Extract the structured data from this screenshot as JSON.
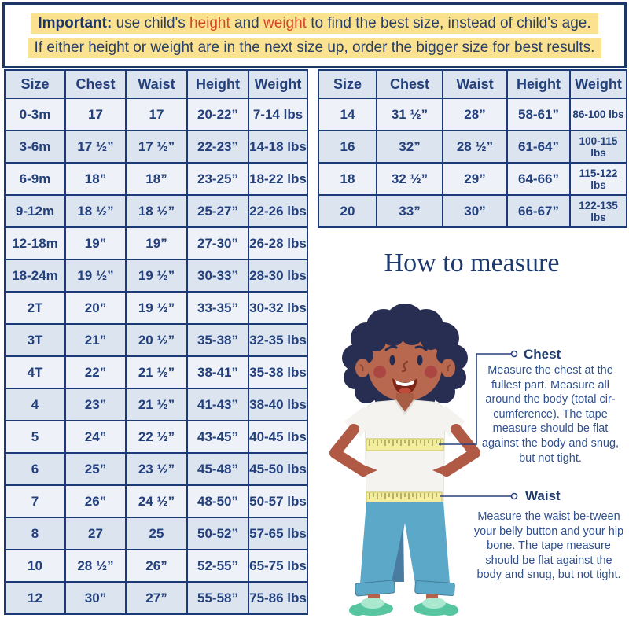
{
  "banner": {
    "important": "Important:",
    "seg_use": " use child's ",
    "height_word": "height",
    "seg_and": " and ",
    "weight_word": "weight",
    "seg_rest": " to find the best size, instead of child's age.",
    "line2": "If either height or weight are in the next size up, order the bigger size for best results."
  },
  "size_table_headers": [
    "Size",
    "Chest",
    "Waist",
    "Height",
    "Weight"
  ],
  "left_table_rows": [
    [
      "0-3m",
      "17",
      "17",
      "20-22”",
      "7-14 lbs"
    ],
    [
      "3-6m",
      "17 ½”",
      "17 ½”",
      "22-23”",
      "14-18 lbs"
    ],
    [
      "6-9m",
      "18”",
      "18”",
      "23-25”",
      "18-22 lbs"
    ],
    [
      "9-12m",
      "18 ½”",
      "18 ½”",
      "25-27”",
      "22-26 lbs"
    ],
    [
      "12-18m",
      "19”",
      "19”",
      "27-30”",
      "26-28 lbs"
    ],
    [
      "18-24m",
      "19 ½”",
      "19 ½”",
      "30-33”",
      "28-30 lbs"
    ],
    [
      "2T",
      "20”",
      "19 ½”",
      "33-35”",
      "30-32 lbs"
    ],
    [
      "3T",
      "21”",
      "20 ½”",
      "35-38”",
      "32-35 lbs"
    ],
    [
      "4T",
      "22”",
      "21 ½”",
      "38-41”",
      "35-38 lbs"
    ],
    [
      "4",
      "23”",
      "21 ½”",
      "41-43”",
      "38-40 lbs"
    ],
    [
      "5",
      "24”",
      "22 ½”",
      "43-45”",
      "40-45 lbs"
    ],
    [
      "6",
      "25”",
      "23 ½”",
      "45-48”",
      "45-50 lbs"
    ],
    [
      "7",
      "26”",
      "24 ½”",
      "48-50”",
      "50-57 lbs"
    ],
    [
      "8",
      "27",
      "25",
      "50-52”",
      "57-65 lbs"
    ],
    [
      "10",
      "28 ½”",
      "26”",
      "52-55”",
      "65-75 lbs"
    ],
    [
      "12",
      "30”",
      "27”",
      "55-58”",
      "75-86 lbs"
    ]
  ],
  "right_table_rows": [
    [
      "14",
      "31 ½”",
      "28”",
      "58-61”",
      "86-100 lbs"
    ],
    [
      "16",
      "32”",
      "28 ½”",
      "61-64”",
      "100-115 lbs"
    ],
    [
      "18",
      "32 ½”",
      "29”",
      "64-66”",
      "115-122 lbs"
    ],
    [
      "20",
      "33”",
      "30”",
      "66-67”",
      "122-135 lbs"
    ]
  ],
  "measure_section": {
    "title": "How to measure",
    "chest": {
      "label": "Chest",
      "description": "Measure the chest at the fullest part. Measure all around the body (total cir-cumference). The tape measure should be flat against the body and snug, but not tight."
    },
    "waist": {
      "label": "Waist",
      "description": "Measure the waist be-tween your belly button and your hip bone. The tape measure should be flat against the body and snug, but not tight."
    }
  },
  "colors": {
    "navy": "#1d3a78",
    "accent_red": "#d8382a",
    "highlight_yellow": "#fbe290",
    "row_light": "#eef1f7",
    "row_shaded": "#dce4f0",
    "tape_yellow": "#f3ee9f",
    "pants_blue": "#5ba8c8",
    "shoe_mint": "#57c5a0",
    "skin": "#b7684f",
    "hair": "#272e52"
  }
}
